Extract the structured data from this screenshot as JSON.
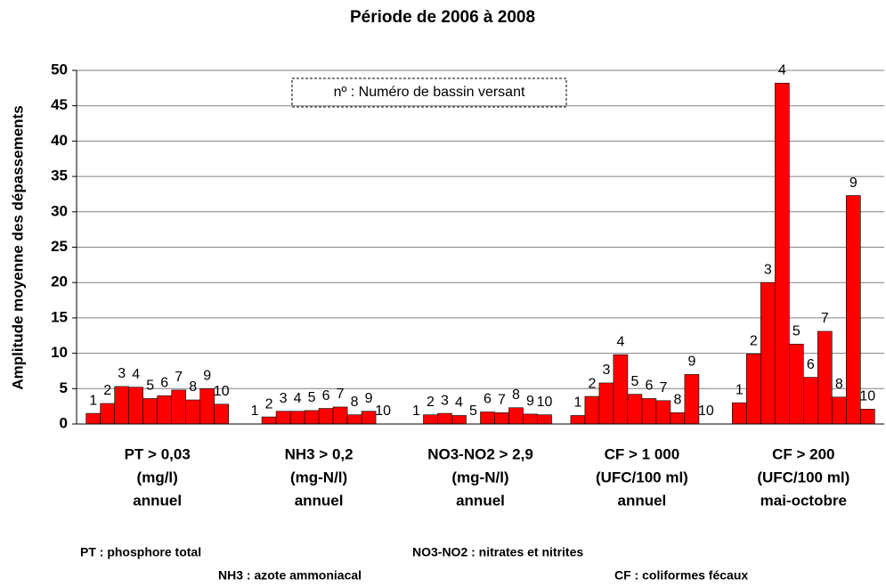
{
  "chart_data": {
    "type": "bar",
    "title": "Période de 2006 à 2008",
    "y_label": "Amplitude moyenne des dépassements",
    "annotation": "nº : Numéro de bassin versant",
    "categories": [
      [
        "PT > 0,03",
        "(mg/l)",
        "annuel"
      ],
      [
        "NH3 > 0,2",
        "(mg-N/l)",
        "annuel"
      ],
      [
        "NO3-NO2 > 2,9",
        "(mg-N/l)",
        "annuel"
      ],
      [
        "CF > 1 000",
        "(UFC/100 ml)",
        "annuel"
      ],
      [
        "CF > 200",
        "(UFC/100 ml)",
        "mai-octobre"
      ]
    ],
    "series": [
      {
        "name": "1",
        "color": "#ff0000",
        "values": [
          1.5,
          0,
          0,
          1.2,
          3.0
        ]
      },
      {
        "name": "2",
        "color": "#ff0000",
        "values": [
          2.9,
          1.0,
          1.3,
          3.9,
          9.9
        ]
      },
      {
        "name": "3",
        "color": "#ff0000",
        "values": [
          5.3,
          1.8,
          1.5,
          5.8,
          20.0
        ]
      },
      {
        "name": "4",
        "color": "#ff0000",
        "values": [
          5.2,
          1.8,
          1.2,
          9.8,
          48.2
        ]
      },
      {
        "name": "5",
        "color": "#ff0000",
        "values": [
          3.6,
          1.9,
          0,
          4.2,
          11.3
        ]
      },
      {
        "name": "6",
        "color": "#ff0000",
        "values": [
          4.0,
          2.2,
          1.7,
          3.6,
          6.6
        ]
      },
      {
        "name": "7",
        "color": "#ff0000",
        "values": [
          4.8,
          2.4,
          1.6,
          3.3,
          13.1
        ]
      },
      {
        "name": "8",
        "color": "#ff0000",
        "values": [
          3.4,
          1.3,
          2.3,
          1.6,
          3.8
        ]
      },
      {
        "name": "9",
        "color": "#ff0000",
        "values": [
          5.0,
          1.8,
          1.4,
          7.0,
          32.3
        ]
      },
      {
        "name": "10",
        "color": "#ff0000",
        "values": [
          2.8,
          0,
          1.3,
          0,
          2.1
        ]
      }
    ],
    "ylim": [
      0,
      50
    ],
    "yticks": [
      0,
      5,
      10,
      15,
      20,
      25,
      30,
      35,
      40,
      45,
      50
    ],
    "grid": true,
    "footnotes": [
      "PT : phosphore total",
      "NO3-NO2 : nitrates et nitrites",
      "NH3 : azote ammoniacal",
      "CF : coliformes fécaux"
    ]
  }
}
